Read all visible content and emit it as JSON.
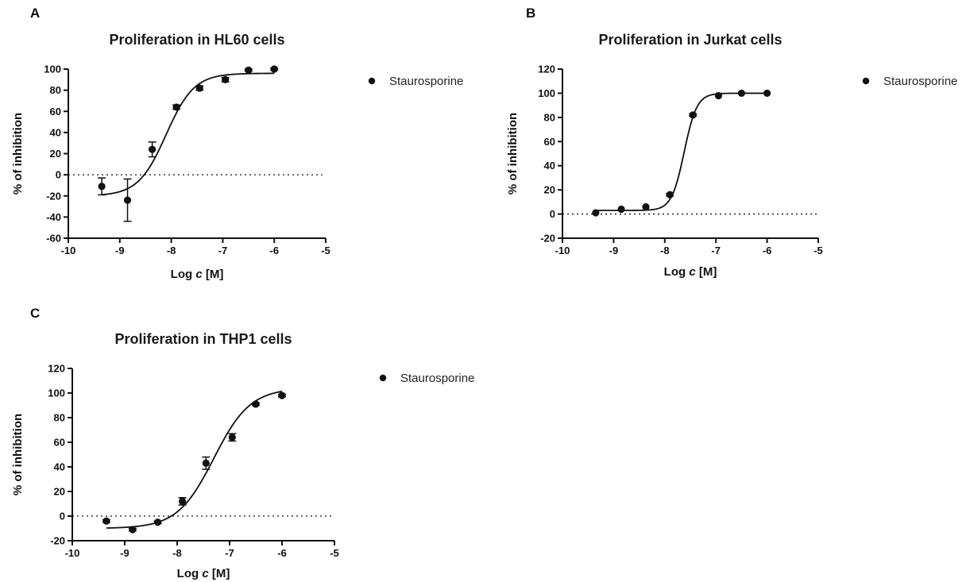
{
  "chart_data": [
    {
      "type": "scatter",
      "panel": "A",
      "title": "Proliferation in HL60 cells",
      "xlabel_prefix": "Log ",
      "xlabel_var": "c",
      "xlabel_suffix": " [M]",
      "ylabel": "% of inhibition",
      "xlim": [
        -10,
        -5
      ],
      "ylim": [
        -60,
        100
      ],
      "xticks": [
        -10,
        -9,
        -8,
        -7,
        -6,
        -5
      ],
      "yticks": [
        -60,
        -40,
        -20,
        0,
        20,
        40,
        60,
        80,
        100
      ],
      "zero_line": "dotted",
      "legend_position": "right",
      "fit": {
        "bottom": -20,
        "top": 96,
        "logEC50": -8.1,
        "hill": 1.6
      },
      "series": [
        {
          "name": "Staurosporine",
          "x": [
            -9.35,
            -8.85,
            -8.37,
            -7.9,
            -7.45,
            -6.95,
            -6.5,
            -6.0
          ],
          "y": [
            -11,
            -24,
            24,
            64,
            82,
            90,
            99,
            100
          ],
          "err": [
            8,
            20,
            7,
            2,
            2,
            2,
            1,
            1
          ]
        }
      ]
    },
    {
      "type": "scatter",
      "panel": "B",
      "title": "Proliferation in Jurkat cells",
      "xlabel_prefix": "Log ",
      "xlabel_var": "c",
      "xlabel_suffix": " [M]",
      "ylabel": "% of inhibition",
      "xlim": [
        -10,
        -5
      ],
      "ylim": [
        -20,
        120
      ],
      "xticks": [
        -10,
        -9,
        -8,
        -7,
        -6,
        -5
      ],
      "yticks": [
        -20,
        0,
        20,
        40,
        60,
        80,
        100,
        120
      ],
      "zero_line": "dotted",
      "legend_position": "right",
      "fit": {
        "bottom": 3,
        "top": 100,
        "logEC50": -7.62,
        "hill": 3.5
      },
      "series": [
        {
          "name": "Staurosporine",
          "x": [
            -9.35,
            -8.85,
            -8.37,
            -7.9,
            -7.45,
            -6.95,
            -6.5,
            -6.0
          ],
          "y": [
            1,
            4,
            6,
            16,
            82,
            98,
            100,
            100
          ],
          "err": [
            0,
            0,
            0,
            1,
            1,
            0,
            0,
            0
          ]
        }
      ]
    },
    {
      "type": "scatter",
      "panel": "C",
      "title": "Proliferation in THP1 cells",
      "xlabel_prefix": "Log ",
      "xlabel_var": "c",
      "xlabel_suffix": " [M]",
      "ylabel": "% of inhibition",
      "xlim": [
        -10,
        -5
      ],
      "ylim": [
        -20,
        120
      ],
      "xticks": [
        -10,
        -9,
        -8,
        -7,
        -6,
        -5
      ],
      "yticks": [
        -20,
        0,
        20,
        40,
        60,
        80,
        100,
        120
      ],
      "zero_line": "dotted",
      "legend_position": "right",
      "fit": {
        "bottom": -10,
        "top": 104,
        "logEC50": -7.3,
        "hill": 1.25
      },
      "series": [
        {
          "name": "Staurosporine",
          "x": [
            -9.35,
            -8.85,
            -8.37,
            -7.9,
            -7.45,
            -6.95,
            -6.5,
            -6.0
          ],
          "y": [
            -4,
            -11,
            -5,
            12,
            43,
            64,
            91,
            98
          ],
          "err": [
            1,
            1,
            1,
            3,
            5,
            3,
            1,
            1
          ]
        }
      ]
    }
  ],
  "colors": {
    "ink": "#111111",
    "background": "#ffffff"
  }
}
